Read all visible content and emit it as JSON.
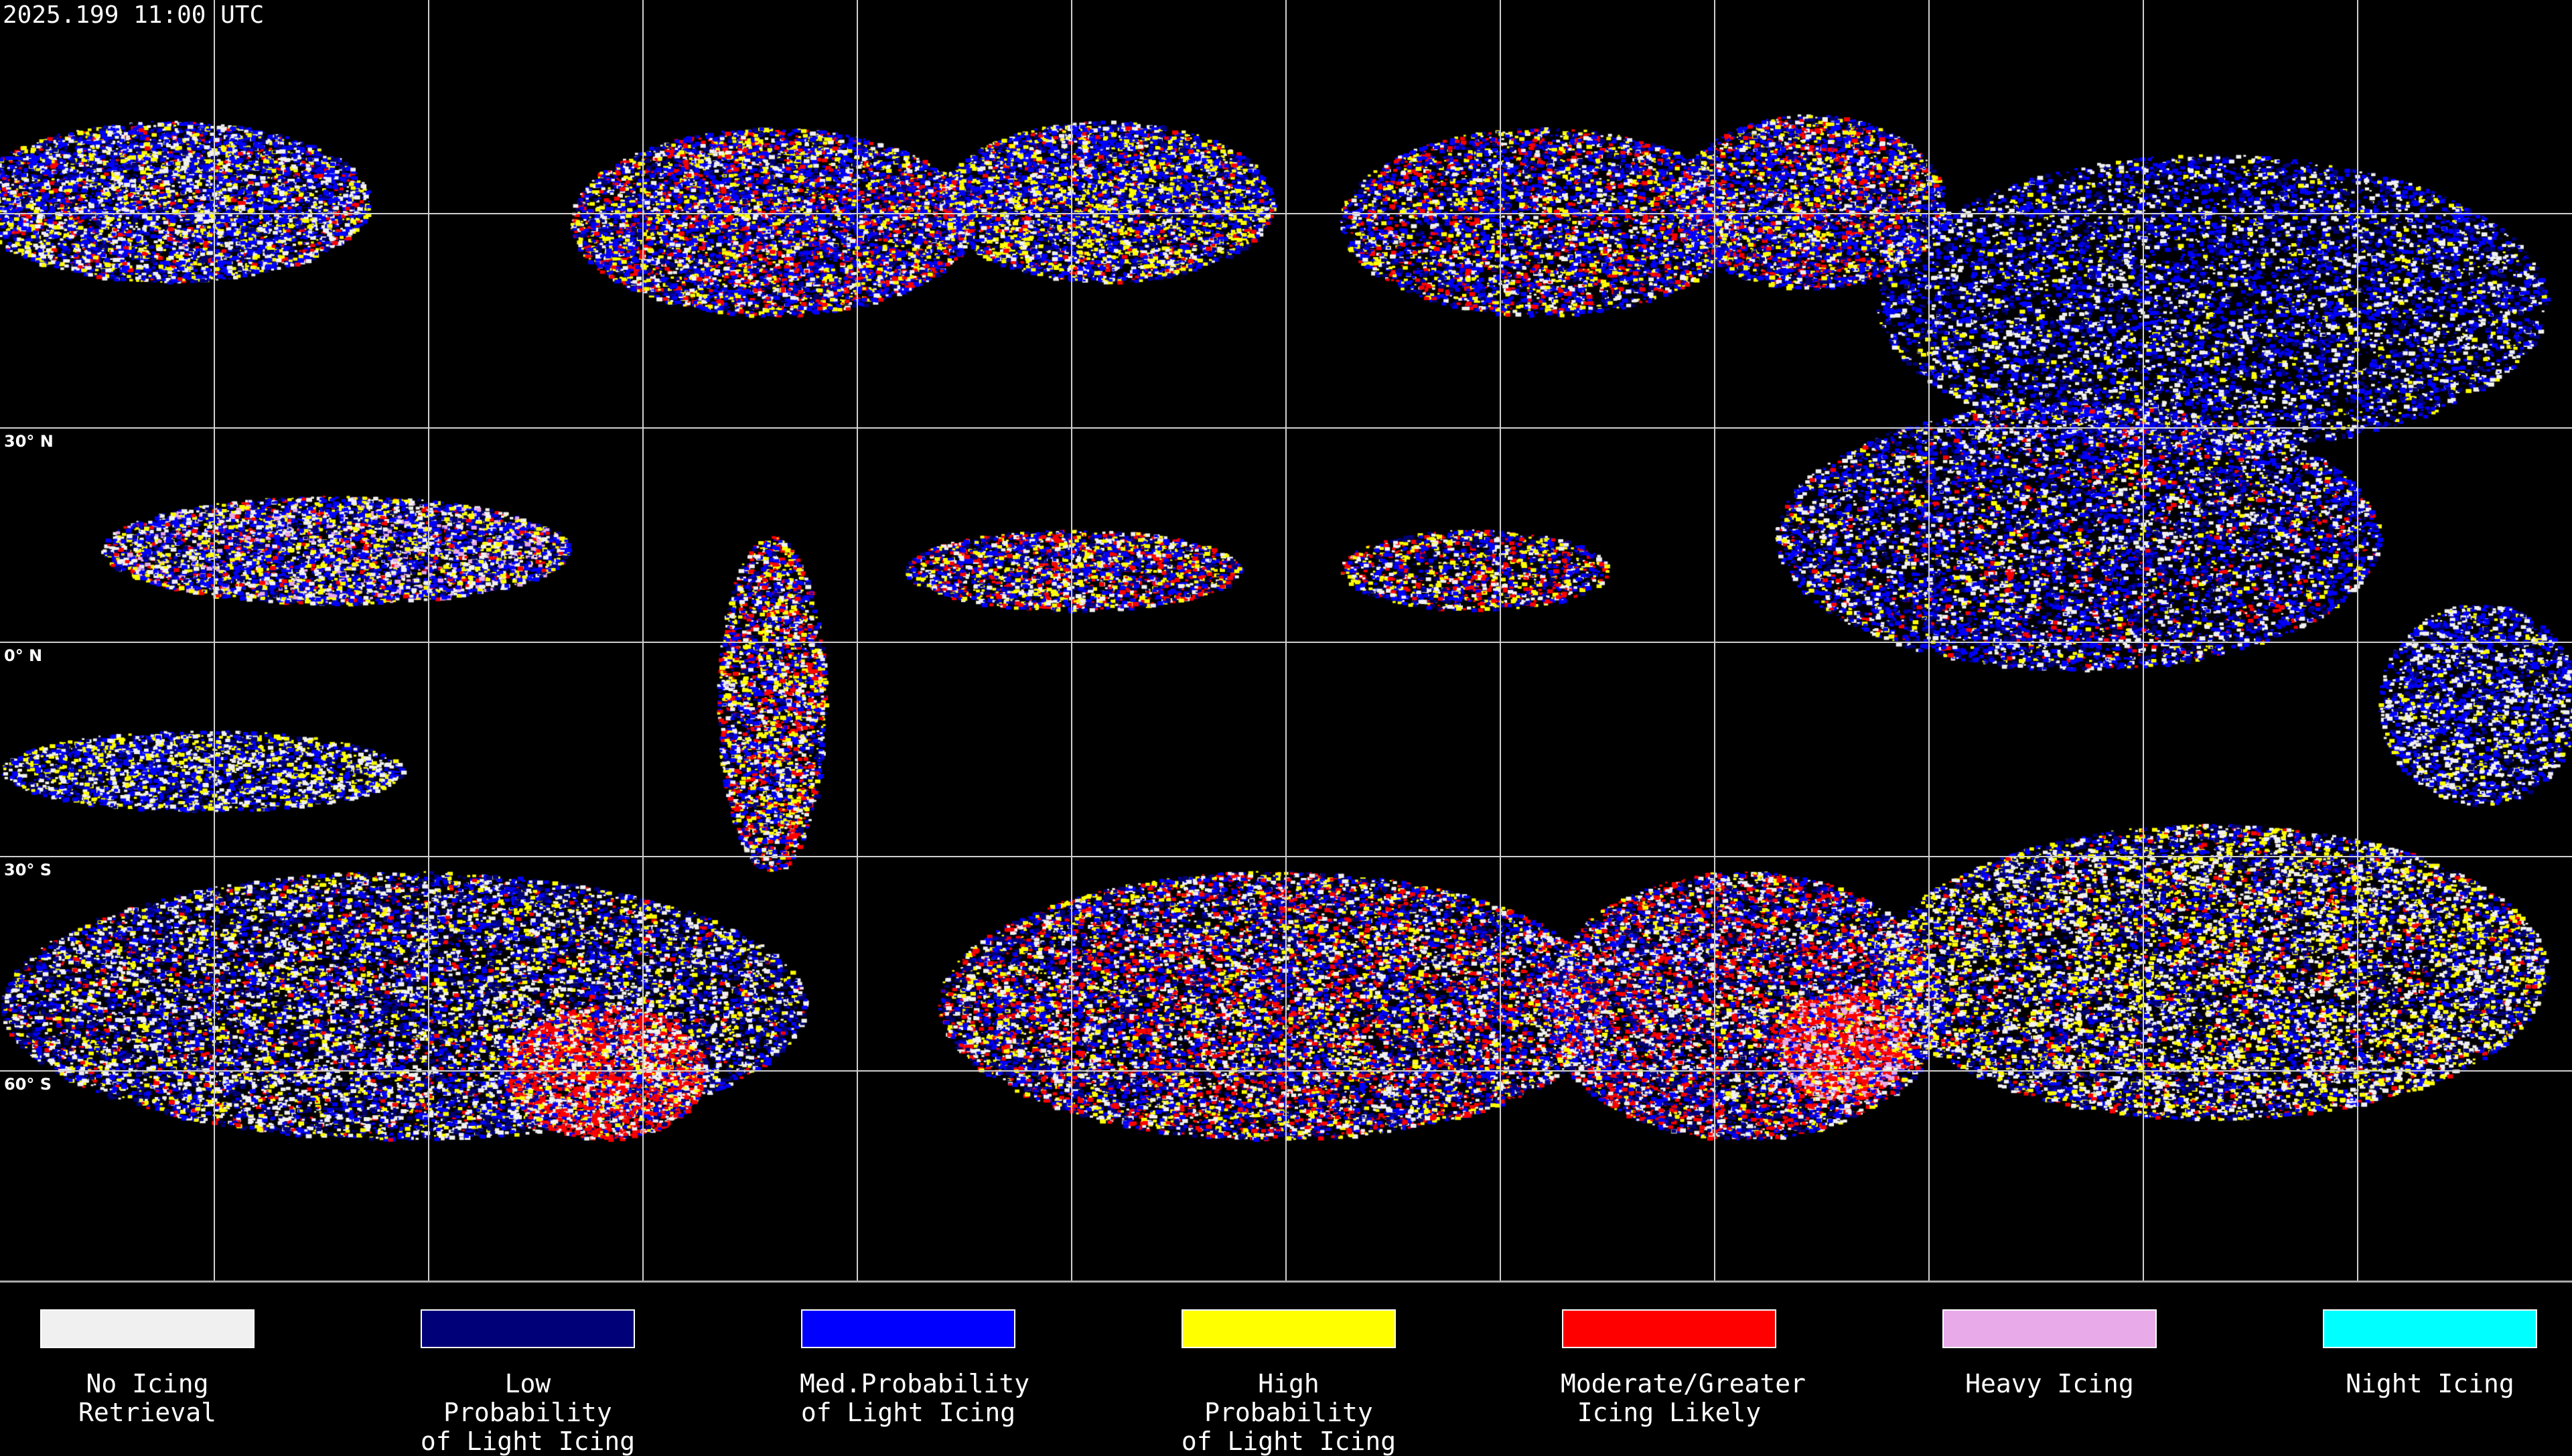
{
  "header": {
    "timestamp": "2025.199 11:00 UTC"
  },
  "map": {
    "projection": "equirectangular",
    "grid_spacing_degrees": 30,
    "latitude_labels": [
      "30° N",
      "0° N",
      "30° S",
      "60° S"
    ],
    "coastlines_color": "#ffffff",
    "background_color": "#000000"
  },
  "legend": [
    {
      "label": "No Icing\nRetrieval",
      "color": "#f0f0f0"
    },
    {
      "label": "Low Probability\nof Light Icing",
      "color": "#000078"
    },
    {
      "label": "Med.Probability\nof Light Icing",
      "color": "#0000ff"
    },
    {
      "label": "High Probability\nof Light Icing",
      "color": "#ffff00"
    },
    {
      "label": "Moderate/Greater\nIcing Likely",
      "color": "#ff0000"
    },
    {
      "label": "Heavy Icing",
      "color": "#e8aae8"
    },
    {
      "label": "Night Icing",
      "color": "#00ffff"
    }
  ]
}
